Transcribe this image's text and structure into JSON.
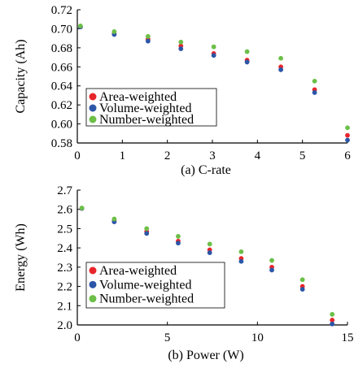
{
  "chart_data": [
    {
      "type": "scatter",
      "xlabel": "(a) C-rate",
      "ylabel": "Capacity (Ah)",
      "xlim": [
        0,
        6
      ],
      "ylim": [
        0.58,
        0.72
      ],
      "xticks": [
        0,
        1,
        2,
        3,
        4,
        5,
        6
      ],
      "yticks": [
        0.58,
        0.6,
        0.62,
        0.64,
        0.66,
        0.68,
        0.7,
        0.72
      ],
      "ytick_labels": [
        "0.58",
        "0.60",
        "0.62",
        "0.64",
        "0.66",
        "0.68",
        "0.70",
        "0.72"
      ],
      "legend_position": "bottom-left",
      "grid": false,
      "series": [
        {
          "name": "Area-weighted",
          "color": "#e8252b",
          "x": [
            0.07,
            0.82,
            1.57,
            2.3,
            3.03,
            3.77,
            4.52,
            5.27,
            6.0
          ],
          "y": [
            0.702,
            0.695,
            0.689,
            0.682,
            0.674,
            0.667,
            0.66,
            0.636,
            0.588
          ]
        },
        {
          "name": "Volume-weighted",
          "color": "#2b56a8",
          "x": [
            0.07,
            0.82,
            1.57,
            2.3,
            3.03,
            3.77,
            4.52,
            5.27,
            6.0
          ],
          "y": [
            0.702,
            0.694,
            0.687,
            0.679,
            0.672,
            0.665,
            0.657,
            0.633,
            0.583
          ]
        },
        {
          "name": "Number-weighted",
          "color": "#6cbf47",
          "x": [
            0.07,
            0.82,
            1.57,
            2.3,
            3.03,
            3.77,
            4.52,
            5.27,
            6.0
          ],
          "y": [
            0.703,
            0.697,
            0.692,
            0.686,
            0.681,
            0.676,
            0.669,
            0.645,
            0.596
          ]
        }
      ]
    },
    {
      "type": "scatter",
      "xlabel": "(b) Power (W)",
      "ylabel": "Energy (Wh)",
      "xlim": [
        0,
        15
      ],
      "ylim": [
        2.0,
        2.7
      ],
      "xticks": [
        0,
        5,
        10,
        15
      ],
      "yticks": [
        2.0,
        2.1,
        2.2,
        2.3,
        2.4,
        2.5,
        2.6,
        2.7
      ],
      "ytick_labels": [
        "2.0",
        "2.1",
        "2.2",
        "2.3",
        "2.4",
        "2.5",
        "2.6",
        "2.7"
      ],
      "legend_position": "bottom-left",
      "grid": false,
      "series": [
        {
          "name": "Area-weighted",
          "color": "#e8252b",
          "x": [
            0.25,
            2.05,
            3.85,
            5.6,
            7.35,
            9.1,
            10.8,
            12.5,
            14.15
          ],
          "y": [
            2.605,
            2.54,
            2.485,
            2.435,
            2.39,
            2.345,
            2.3,
            2.2,
            2.025
          ]
        },
        {
          "name": "Volume-weighted",
          "color": "#2b56a8",
          "x": [
            0.25,
            2.05,
            3.85,
            5.6,
            7.35,
            9.1,
            10.8,
            12.5,
            14.15
          ],
          "y": [
            2.605,
            2.535,
            2.475,
            2.425,
            2.375,
            2.33,
            2.285,
            2.185,
            2.005
          ]
        },
        {
          "name": "Number-weighted",
          "color": "#6cbf47",
          "x": [
            0.25,
            2.05,
            3.85,
            5.6,
            7.35,
            9.1,
            10.8,
            12.5,
            14.15
          ],
          "y": [
            2.607,
            2.55,
            2.5,
            2.46,
            2.42,
            2.38,
            2.335,
            2.235,
            2.055
          ]
        }
      ]
    }
  ]
}
